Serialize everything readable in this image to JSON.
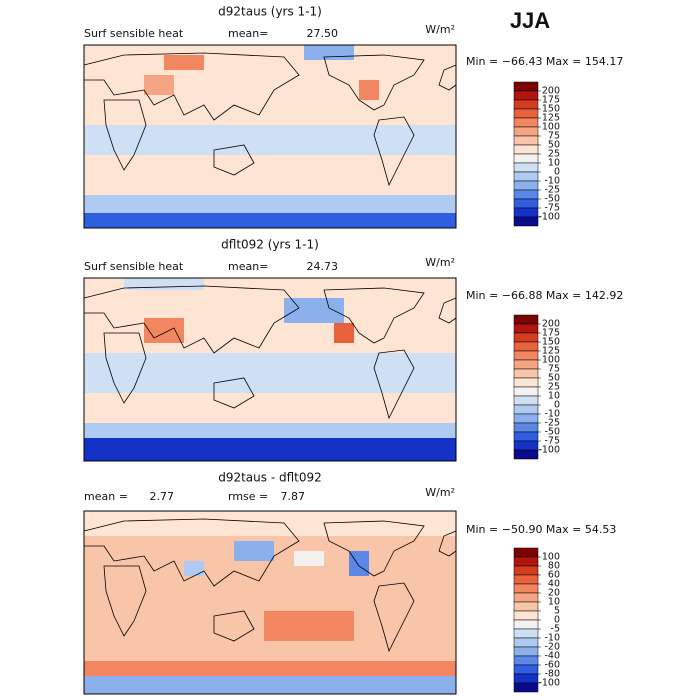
{
  "title": "JJA",
  "panels": [
    {
      "title": "d92taus (yrs 1-1)",
      "variable": "Surf sensible heat",
      "stat1_label": "mean=",
      "stat1_value": "27.50",
      "units": "W/m²",
      "range_text": "Min = −66.43  Max = 154.17",
      "colorbar": {
        "labels": [
          200,
          175,
          150,
          125,
          100,
          75,
          50,
          25,
          10,
          0,
          -10,
          -25,
          -50,
          -75,
          -100
        ],
        "colors": [
          "#7a0403",
          "#b2150e",
          "#d43d1f",
          "#e8623e",
          "#f28660",
          "#f6a584",
          "#f9c5a9",
          "#fde4d3",
          "#f4f2f1",
          "#cfe0f5",
          "#b0cbf1",
          "#8bb0ec",
          "#5b88e6",
          "#2f5ee0",
          "#1432c8",
          "#0a0a8a"
        ]
      }
    },
    {
      "title": "dflt092 (yrs 1-1)",
      "variable": "Surf sensible heat",
      "stat1_label": "mean=",
      "stat1_value": "24.73",
      "units": "W/m²",
      "range_text": "Min = −66.88  Max = 142.92",
      "colorbar": {
        "labels": [
          200,
          175,
          150,
          125,
          100,
          75,
          50,
          25,
          10,
          0,
          -10,
          -25,
          -50,
          -75,
          -100
        ],
        "colors": [
          "#7a0403",
          "#b2150e",
          "#d43d1f",
          "#e8623e",
          "#f28660",
          "#f6a584",
          "#f9c5a9",
          "#fde4d3",
          "#f4f2f1",
          "#cfe0f5",
          "#b0cbf1",
          "#8bb0ec",
          "#5b88e6",
          "#2f5ee0",
          "#1432c8",
          "#0a0a8a"
        ]
      }
    },
    {
      "title": "d92taus - dflt092",
      "stat1_label": "mean =",
      "stat1_value": "2.77",
      "stat2_label": "rmse =",
      "stat2_value": "7.87",
      "units": "W/m²",
      "range_text": "Min = −50.90  Max =  54.53",
      "colorbar": {
        "labels": [
          100,
          80,
          60,
          40,
          20,
          10,
          5,
          0,
          -5,
          -10,
          -20,
          -40,
          -60,
          -80,
          -100
        ],
        "colors": [
          "#7a0403",
          "#b2150e",
          "#d43d1f",
          "#e8623e",
          "#f28660",
          "#f6a584",
          "#f9c5a9",
          "#fde4d3",
          "#f4f2f1",
          "#cfe0f5",
          "#b0cbf1",
          "#8bb0ec",
          "#5b88e6",
          "#2f5ee0",
          "#1432c8",
          "#0a0a8a"
        ]
      }
    }
  ]
}
